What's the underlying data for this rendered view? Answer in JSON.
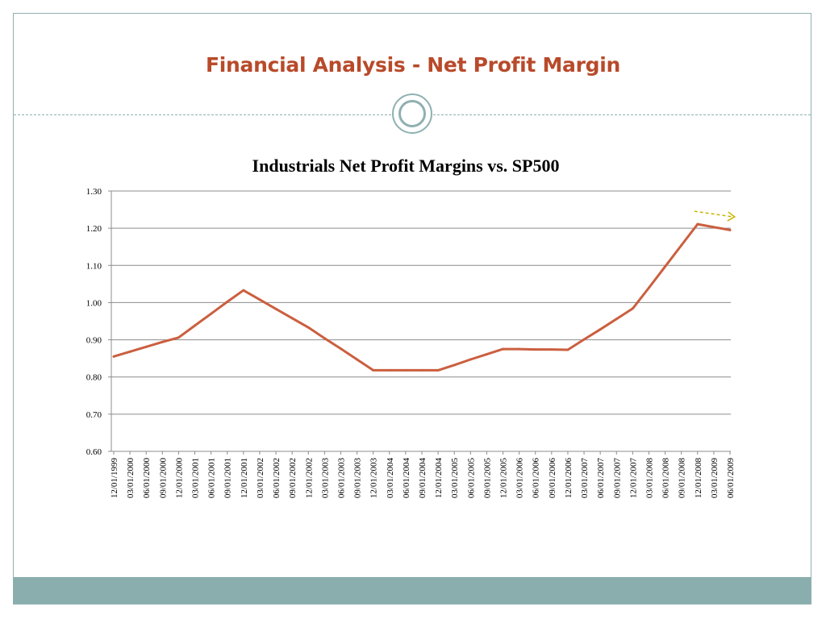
{
  "slide": {
    "title": "Financial Analysis - Net Profit Margin",
    "colors": {
      "title": "#b84a2a",
      "frame": "#8fb0b0",
      "band": "#8aaeae",
      "line": "#cb5f3f",
      "arrow": "#c9b400"
    }
  },
  "chart_data": {
    "type": "line",
    "title": "Industrials Net Profit Margins vs. SP500",
    "xlabel": "",
    "ylabel": "",
    "ylim": [
      0.6,
      1.3
    ],
    "yticks": [
      "0.60",
      "0.70",
      "0.80",
      "0.90",
      "1.00",
      "1.10",
      "1.20",
      "1.30"
    ],
    "grid": true,
    "legend": "none",
    "categories": [
      "12/01/1999",
      "03/01/2000",
      "06/01/2000",
      "09/01/2000",
      "12/01/2000",
      "03/01/2001",
      "06/01/2001",
      "09/01/2001",
      "12/01/2001",
      "03/01/2002",
      "06/01/2002",
      "09/01/2002",
      "12/01/2002",
      "03/01/2003",
      "06/01/2003",
      "09/01/2003",
      "12/01/2003",
      "03/01/2004",
      "06/01/2004",
      "09/01/2004",
      "12/01/2004",
      "03/01/2005",
      "06/01/2005",
      "09/01/2005",
      "12/01/2005",
      "03/01/2006",
      "06/01/2006",
      "09/01/2006",
      "12/01/2006",
      "03/01/2007",
      "06/01/2007",
      "09/01/2007",
      "12/01/2007",
      "03/01/2008",
      "06/01/2008",
      "09/01/2008",
      "12/01/2008",
      "03/01/2009",
      "06/01/2009"
    ],
    "series": [
      {
        "values": [
          0.855,
          0.868,
          0.881,
          0.894,
          0.906,
          0.938,
          0.97,
          1.002,
          1.033,
          1.008,
          0.983,
          0.958,
          0.933,
          0.904,
          0.876,
          0.847,
          0.818,
          0.818,
          0.818,
          0.818,
          0.818,
          0.832,
          0.847,
          0.861,
          0.875,
          0.875,
          0.874,
          0.874,
          0.873,
          0.901,
          0.928,
          0.956,
          0.984,
          1.04,
          1.097,
          1.154,
          1.211,
          1.203,
          1.195
        ]
      }
    ],
    "annotations": [
      {
        "type": "dashed-arrow",
        "near": "12/01/2008",
        "direction": "down-right"
      }
    ]
  }
}
